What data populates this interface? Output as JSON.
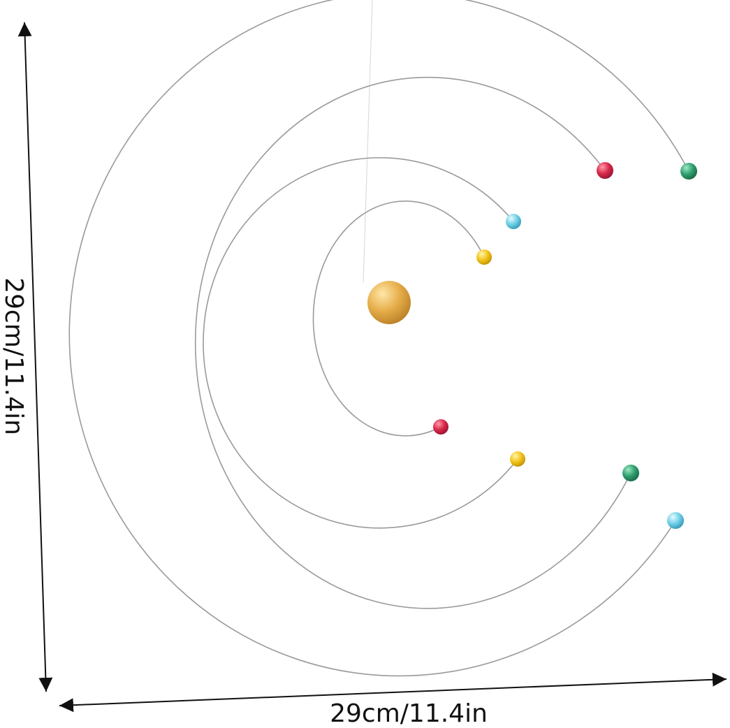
{
  "dimensions": {
    "height": "29cm/11.4in",
    "width": "29cm/11.4in"
  }
}
